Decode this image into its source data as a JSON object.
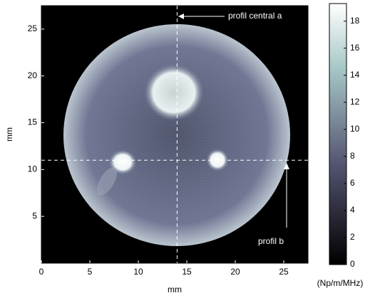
{
  "chart_data": {
    "type": "image",
    "xlabel": "mm",
    "ylabel": "mm",
    "xlim": [
      0,
      27.5
    ],
    "ylim": [
      0,
      27.5
    ],
    "xticks": [
      0,
      5,
      10,
      15,
      20,
      25
    ],
    "yticks": [
      5,
      10,
      15,
      20,
      25
    ],
    "clim": [
      0,
      19.3
    ],
    "cticks": [
      0,
      2,
      4,
      6,
      8,
      10,
      12,
      14,
      16,
      18
    ],
    "colorbar_label": "(Np/m/MHz)",
    "profiles": [
      {
        "name": "profil central a",
        "orientation": "vertical",
        "position": 14
      },
      {
        "name": "profil b",
        "orientation": "horizontal",
        "position": 11
      }
    ]
  }
}
